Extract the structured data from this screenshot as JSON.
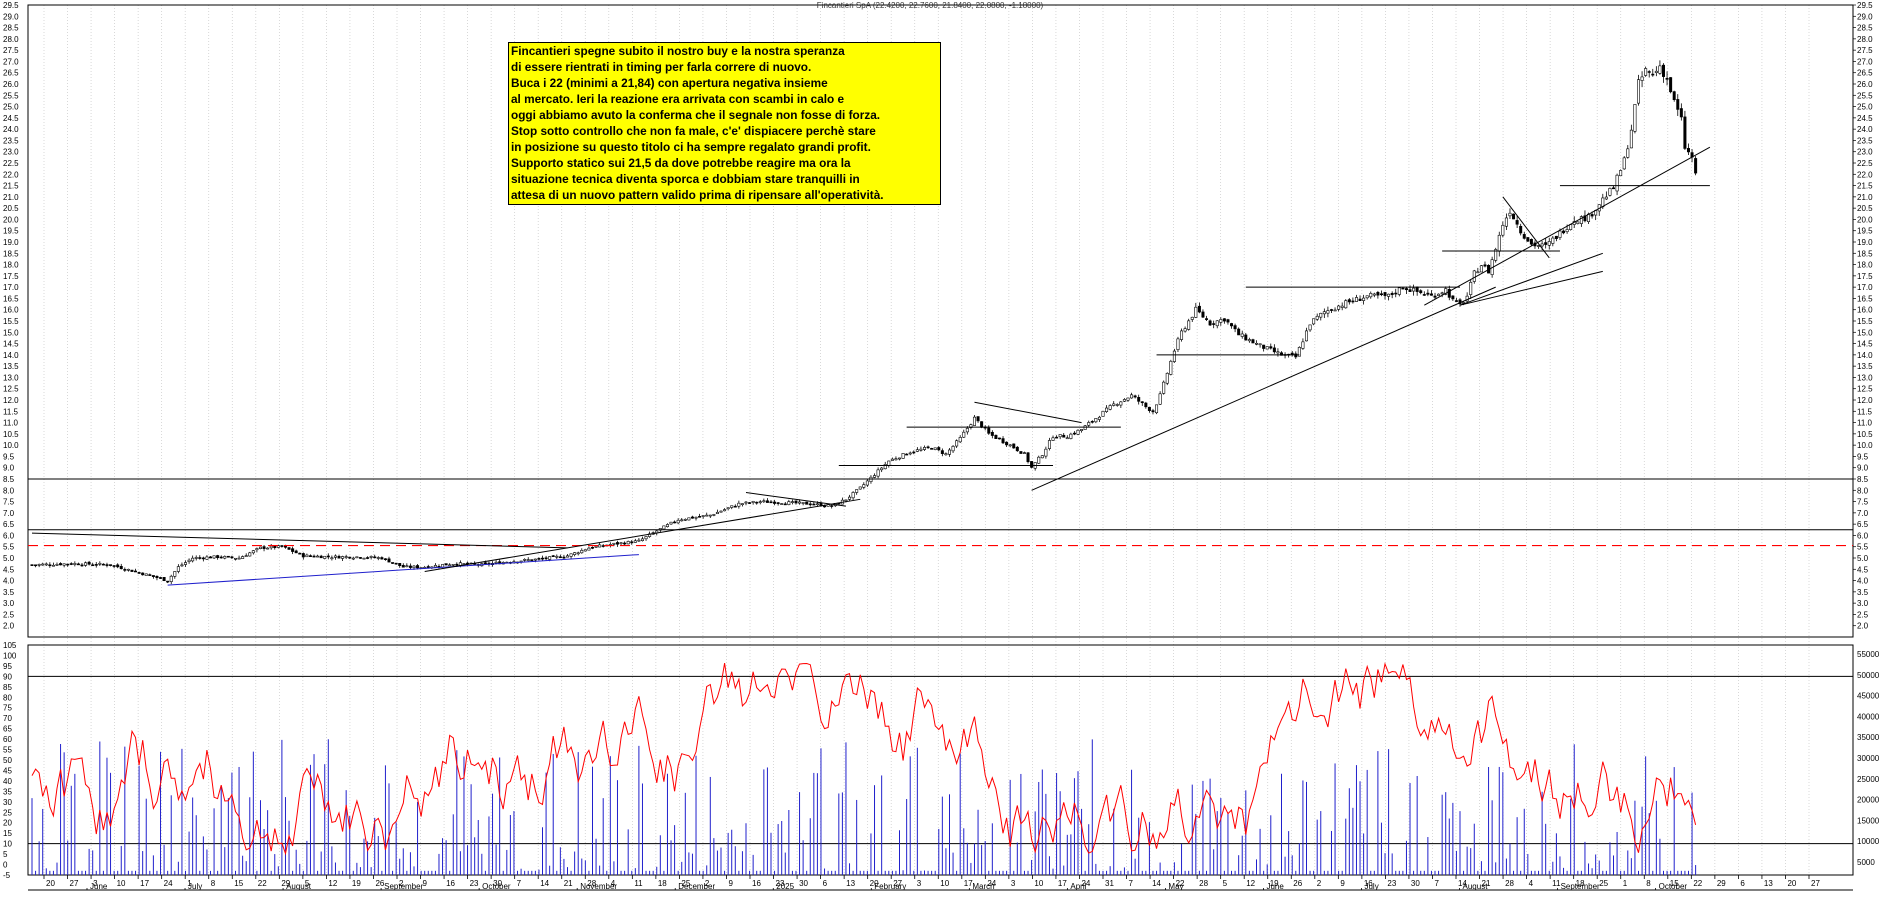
{
  "header": {
    "title": "Fincantieri SpA (22.4200, 22.7600, 21.8400, 22.0800, -1.18000)"
  },
  "annotation": {
    "lines": [
      "Fincantieri spegne subito il nostro buy e la nostra speranza",
      "di essere rientrati in timing per farla correre di nuovo.",
      "Buca i 22 (minimi a 21,84) con apertura negativa insieme",
      "al mercato.  Ieri la reazione era arrivata con scambi in calo e",
      "oggi abbiamo avuto la conferma che il segnale non fosse di forza.",
      "Stop sotto controllo che non fa male, c'e' dispiacere perchè stare",
      "in posizione su questo titolo ci ha sempre regalato grandi profit.",
      "Supporto statico sui 21,5 da dove potrebbe reagire ma ora la",
      "situazione tecnica diventa sporca e dobbiam stare tranquilli in",
      "attesa di un nuovo pattern valido prima di ripensare all'operatività."
    ]
  },
  "colors": {
    "candle_up": "#ffffff",
    "candle_down": "#000000",
    "trendline": "#000000",
    "support_blue": "#2020cc",
    "dashed_level": "#ff0000",
    "oscillator": "#ff0000",
    "volume": "#2020cc",
    "note_background": "#ffff00"
  },
  "chart_data": [
    {
      "type": "candlestick",
      "title": "Fincantieri SpA (22.4200, 22.7600, 21.8400, 22.0800, -1.18000)",
      "ylim": [
        1.5,
        29.5
      ],
      "y_ticks": [
        "2.0",
        "2.5",
        "3.0",
        "3.5",
        "4.0",
        "4.5",
        "5.0",
        "5.5",
        "6.0",
        "6.5",
        "7.0",
        "7.5",
        "8.0",
        "8.5",
        "9.0",
        "9.5",
        "10.0",
        "10.5",
        "11.0",
        "11.5",
        "12.0",
        "12.5",
        "13.0",
        "13.5",
        "14.0",
        "14.5",
        "15.0",
        "15.5",
        "16.0",
        "16.5",
        "17.0",
        "17.5",
        "18.0",
        "18.5",
        "19.0",
        "19.5",
        "20.0",
        "20.5",
        "21.0",
        "21.5",
        "22.0",
        "22.5",
        "23.0",
        "23.5",
        "24.0",
        "24.5",
        "25.0",
        "25.5",
        "26.0",
        "26.5",
        "27.0",
        "27.5",
        "28.0",
        "28.5",
        "29.0",
        "29.5"
      ],
      "x_axis_day_labels": [
        "20",
        "27",
        "3",
        "10",
        "17",
        "24",
        "1",
        "8",
        "15",
        "22",
        "29",
        "5",
        "12",
        "19",
        "26",
        "2",
        "9",
        "16",
        "23",
        "30",
        "7",
        "14",
        "21",
        "28",
        "4",
        "11",
        "18",
        "25",
        "2",
        "9",
        "16",
        "23",
        "30",
        "6",
        "13",
        "20",
        "27",
        "3",
        "10",
        "17",
        "24",
        "3",
        "10",
        "17",
        "24",
        "31",
        "7",
        "14",
        "22",
        "28",
        "5",
        "12",
        "19",
        "26",
        "2",
        "9",
        "16",
        "23",
        "30",
        "7",
        "14",
        "21",
        "28",
        "4",
        "11",
        "18",
        "25",
        "1",
        "8",
        "15",
        "22",
        "29",
        "6",
        "13",
        "20",
        "27"
      ],
      "x_axis_month_labels": [
        "June",
        "July",
        "August",
        "September",
        "October",
        "November",
        "December",
        "2025",
        "February",
        "March",
        "April",
        "May",
        "June",
        "July",
        "August",
        "September",
        "October"
      ],
      "horizontal_levels": [
        8.5,
        6.25,
        5.55
      ],
      "dashed_level": 5.55,
      "closing_path": [
        {
          "x": 0,
          "y": 4.7
        },
        {
          "x": 12,
          "y": 4.75
        },
        {
          "x": 22,
          "y": 4.7
        },
        {
          "x": 30,
          "y": 4.35
        },
        {
          "x": 38,
          "y": 4.0
        },
        {
          "x": 41,
          "y": 4.6
        },
        {
          "x": 45,
          "y": 5.0
        },
        {
          "x": 52,
          "y": 5.05
        },
        {
          "x": 58,
          "y": 5.0
        },
        {
          "x": 64,
          "y": 5.45
        },
        {
          "x": 70,
          "y": 5.5
        },
        {
          "x": 76,
          "y": 5.1
        },
        {
          "x": 84,
          "y": 5.05
        },
        {
          "x": 92,
          "y": 5.05
        },
        {
          "x": 98,
          "y": 5.0
        },
        {
          "x": 104,
          "y": 4.6
        },
        {
          "x": 110,
          "y": 4.6
        },
        {
          "x": 118,
          "y": 4.75
        },
        {
          "x": 126,
          "y": 4.7
        },
        {
          "x": 134,
          "y": 4.85
        },
        {
          "x": 142,
          "y": 4.95
        },
        {
          "x": 150,
          "y": 5.1
        },
        {
          "x": 156,
          "y": 5.45
        },
        {
          "x": 162,
          "y": 5.6
        },
        {
          "x": 170,
          "y": 5.75
        },
        {
          "x": 175,
          "y": 6.2
        },
        {
          "x": 181,
          "y": 6.7
        },
        {
          "x": 190,
          "y": 6.9
        },
        {
          "x": 198,
          "y": 7.4
        },
        {
          "x": 204,
          "y": 7.5
        },
        {
          "x": 212,
          "y": 7.45
        },
        {
          "x": 218,
          "y": 7.4
        },
        {
          "x": 224,
          "y": 7.3
        },
        {
          "x": 228,
          "y": 7.6
        },
        {
          "x": 232,
          "y": 8.1
        },
        {
          "x": 236,
          "y": 8.7
        },
        {
          "x": 240,
          "y": 9.3
        },
        {
          "x": 246,
          "y": 9.7
        },
        {
          "x": 252,
          "y": 9.9
        },
        {
          "x": 256,
          "y": 9.6
        },
        {
          "x": 260,
          "y": 10.3
        },
        {
          "x": 264,
          "y": 11.2
        },
        {
          "x": 268,
          "y": 10.5
        },
        {
          "x": 274,
          "y": 10.0
        },
        {
          "x": 278,
          "y": 9.6
        },
        {
          "x": 280,
          "y": 9.0
        },
        {
          "x": 283,
          "y": 9.6
        },
        {
          "x": 286,
          "y": 10.4
        },
        {
          "x": 290,
          "y": 10.4
        },
        {
          "x": 294,
          "y": 10.7
        },
        {
          "x": 298,
          "y": 11.2
        },
        {
          "x": 303,
          "y": 11.8
        },
        {
          "x": 308,
          "y": 12.2
        },
        {
          "x": 312,
          "y": 11.7
        },
        {
          "x": 314,
          "y": 11.5
        },
        {
          "x": 316,
          "y": 12.2
        },
        {
          "x": 318,
          "y": 13.2
        },
        {
          "x": 320,
          "y": 14.2
        },
        {
          "x": 322,
          "y": 15.0
        },
        {
          "x": 326,
          "y": 16.0
        },
        {
          "x": 330,
          "y": 15.4
        },
        {
          "x": 334,
          "y": 15.6
        },
        {
          "x": 338,
          "y": 14.9
        },
        {
          "x": 344,
          "y": 14.4
        },
        {
          "x": 350,
          "y": 14.0
        },
        {
          "x": 354,
          "y": 13.9
        },
        {
          "x": 358,
          "y": 15.4
        },
        {
          "x": 362,
          "y": 15.9
        },
        {
          "x": 368,
          "y": 16.3
        },
        {
          "x": 374,
          "y": 16.6
        },
        {
          "x": 380,
          "y": 16.6
        },
        {
          "x": 384,
          "y": 17.0
        },
        {
          "x": 388,
          "y": 16.8
        },
        {
          "x": 392,
          "y": 16.6
        },
        {
          "x": 396,
          "y": 16.9
        },
        {
          "x": 398,
          "y": 16.4
        },
        {
          "x": 400,
          "y": 16.2
        },
        {
          "x": 402,
          "y": 16.6
        },
        {
          "x": 404,
          "y": 17.6
        },
        {
          "x": 406,
          "y": 18.0
        },
        {
          "x": 408,
          "y": 17.7
        },
        {
          "x": 410,
          "y": 18.7
        },
        {
          "x": 412,
          "y": 19.8
        },
        {
          "x": 414,
          "y": 20.4
        },
        {
          "x": 417,
          "y": 19.5
        },
        {
          "x": 420,
          "y": 18.9
        },
        {
          "x": 424,
          "y": 18.8
        },
        {
          "x": 428,
          "y": 19.4
        },
        {
          "x": 432,
          "y": 20.0
        },
        {
          "x": 436,
          "y": 20.1
        },
        {
          "x": 440,
          "y": 20.9
        },
        {
          "x": 443,
          "y": 21.4
        },
        {
          "x": 446,
          "y": 22.6
        },
        {
          "x": 448,
          "y": 24.0
        },
        {
          "x": 450,
          "y": 26.0
        },
        {
          "x": 452,
          "y": 26.6
        },
        {
          "x": 454,
          "y": 26.4
        },
        {
          "x": 456,
          "y": 26.8
        },
        {
          "x": 458,
          "y": 26.2
        },
        {
          "x": 460,
          "y": 25.2
        },
        {
          "x": 462,
          "y": 24.4
        },
        {
          "x": 463,
          "y": 23.2
        },
        {
          "x": 465,
          "y": 22.7
        },
        {
          "x": 466,
          "y": 22.08
        }
      ]
    },
    {
      "type": "line",
      "name_series": [
        "oscillator",
        "volume"
      ],
      "ylim": [
        -5,
        105
      ],
      "y_ticks": [
        "-5",
        "0",
        "5",
        "10",
        "15",
        "20",
        "25",
        "30",
        "35",
        "40",
        "45",
        "50",
        "55",
        "60",
        "65",
        "70",
        "75",
        "80",
        "85",
        "90",
        "95",
        "100",
        "105"
      ],
      "volume_axis_ticks": [
        "5000",
        "10000",
        "15000",
        "20000",
        "25000",
        "30000",
        "35000",
        "40000",
        "45000",
        "50000",
        "55000"
      ],
      "horizontal_levels": [
        10,
        90
      ]
    }
  ]
}
